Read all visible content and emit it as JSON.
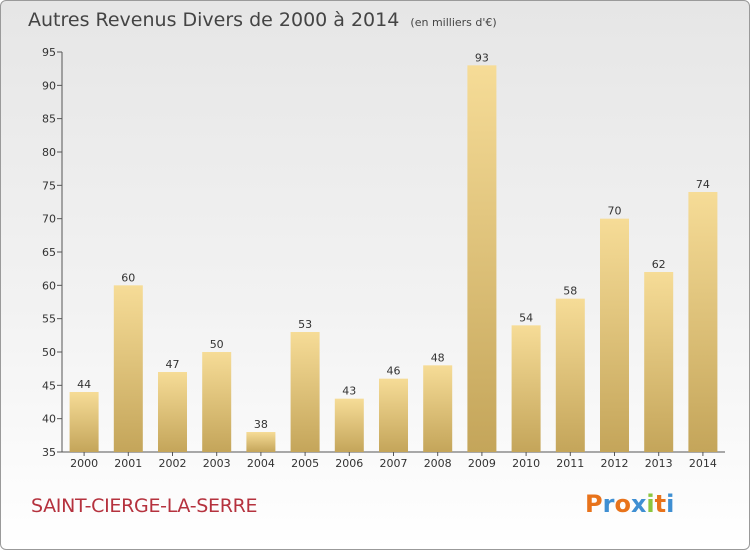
{
  "header": {
    "title": "Autres Revenus Divers de 2000 à 2014",
    "subtitle": "(en milliers d'€)"
  },
  "footer": {
    "place": "SAINT-CIERGE-LA-SERRE",
    "logo": "Proxiti",
    "logo_colors": [
      "#e8731b",
      "#3f8fd2",
      "#e8731b",
      "#3f8fd2",
      "#8cc63f",
      "#e8731b",
      "#3f8fd2"
    ]
  },
  "colors": {
    "bar_top": "#f6dc97",
    "bar_bottom": "#c4a55a",
    "place": "#b5323e"
  },
  "chart_data": {
    "type": "bar",
    "title": "Autres Revenus Divers de 2000 à 2014",
    "xlabel": "",
    "ylabel": "",
    "categories": [
      "2000",
      "2001",
      "2002",
      "2003",
      "2004",
      "2005",
      "2006",
      "2007",
      "2008",
      "2009",
      "2010",
      "2011",
      "2012",
      "2013",
      "2014"
    ],
    "values": [
      44,
      60,
      47,
      50,
      38,
      53,
      43,
      46,
      48,
      93,
      54,
      58,
      70,
      62,
      74
    ],
    "ylim": [
      35,
      95
    ],
    "yticks": [
      35,
      40,
      45,
      50,
      55,
      60,
      65,
      70,
      75,
      80,
      85,
      90,
      95
    ],
    "grid": false,
    "legend": "none"
  }
}
